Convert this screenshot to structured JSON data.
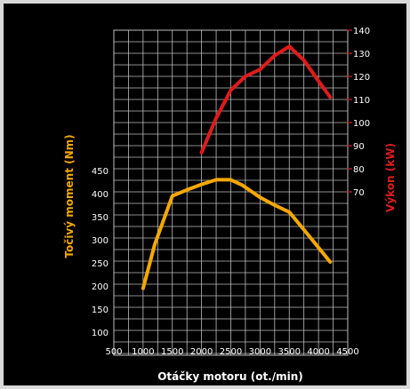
{
  "chart_data": {
    "type": "line",
    "xlabel": "Otáčky motoru (ot./min)",
    "ylabel_left": "Točivý moment (Nm)",
    "ylabel_right": "Výkon (kW)",
    "x_ticks": [
      500,
      1000,
      1500,
      2000,
      2500,
      3000,
      3500,
      4000,
      4500
    ],
    "y_left_ticks": [
      100,
      150,
      200,
      250,
      300,
      350,
      400,
      450
    ],
    "y_right_ticks": [
      70,
      80,
      90,
      100,
      110,
      120,
      130,
      140
    ],
    "xlim": [
      500,
      4500
    ],
    "ylim_left": [
      100,
      450
    ],
    "ylim_right": [
      70,
      140
    ],
    "grid": true,
    "background": "#000000",
    "series": [
      {
        "name": "Točivý moment (Nm)",
        "axis": "left",
        "color": "#f5a800",
        "x": [
          1000,
          1200,
          1500,
          1750,
          2000,
          2250,
          2500,
          2700,
          3000,
          3250,
          3500,
          3750,
          4000,
          4200
        ],
        "y": [
          195,
          290,
          395,
          408,
          420,
          430,
          430,
          418,
          392,
          375,
          360,
          322,
          283,
          252
        ]
      },
      {
        "name": "Výkon (kW)",
        "axis": "right",
        "color": "#e01b1b",
        "x": [
          2000,
          2250,
          2500,
          2750,
          3000,
          3250,
          3500,
          3750,
          4000,
          4200
        ],
        "y": [
          87,
          102,
          114,
          120,
          123,
          129,
          133,
          127,
          118,
          111
        ]
      }
    ]
  }
}
